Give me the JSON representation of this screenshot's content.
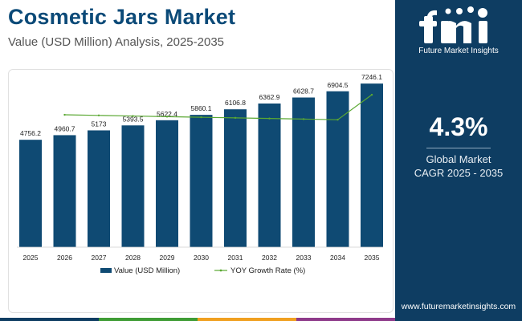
{
  "header": {
    "title": "Cosmetic Jars Market",
    "subtitle": "Value (USD Million) Analysis, 2025-2035"
  },
  "brand": {
    "tagline": "Future Market Insights",
    "website": "www.futuremarketinsights.com",
    "logo_icon": "fmi-logo-icon",
    "panel_color": "#0e3d62"
  },
  "cagr": {
    "value": "4.3%",
    "label_line1": "Global Market",
    "label_line2": "CAGR 2025 - 2035"
  },
  "colors": {
    "bar": "#0f4a73",
    "line": "#5aa832",
    "stripe": [
      "#0e3d62",
      "#3f9c35",
      "#f0a020",
      "#8e3a8a"
    ]
  },
  "chart_data": {
    "type": "bar",
    "categories": [
      "2025",
      "2026",
      "2027",
      "2028",
      "2029",
      "2030",
      "2031",
      "2032",
      "2033",
      "2034",
      "2035"
    ],
    "series": [
      {
        "name": "Value (USD Million)",
        "type": "bar",
        "values": [
          4756.2,
          4960.7,
          5173,
          5393.5,
          5622.4,
          5860.1,
          6106.8,
          6362.9,
          6628.7,
          6904.5,
          7246.1
        ],
        "labels": [
          "4756.2",
          "4960.7",
          "5173",
          "5393.5",
          "5622.4",
          "5860.1",
          "6106.8",
          "6362.9",
          "6628.7",
          "6904.5",
          "7246.1"
        ]
      },
      {
        "name": "YOY Growth Rate (%)",
        "type": "line",
        "values": [
          null,
          4.3,
          4.28,
          4.26,
          4.24,
          4.22,
          4.2,
          4.18,
          4.16,
          4.14,
          4.95
        ]
      }
    ],
    "ylim": [
      0,
      7500
    ],
    "line_ylim": [
      0,
      5.5
    ],
    "legend_position": "bottom",
    "grid": false
  }
}
